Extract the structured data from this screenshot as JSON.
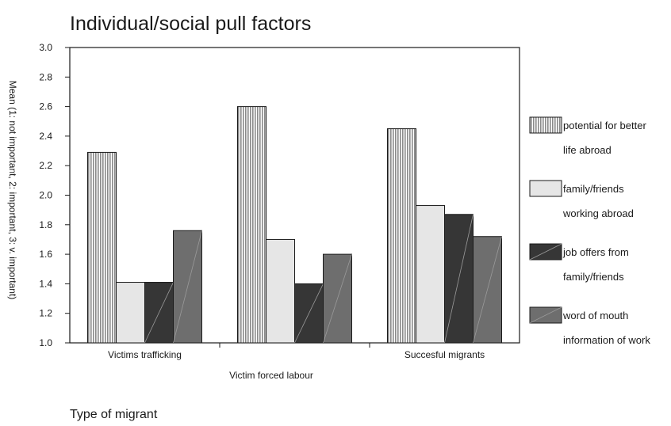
{
  "chart_data": {
    "type": "bar",
    "title": "Individual/social pull factors",
    "ylabel": "Mean (1: not important, 2: important, 3: v. important)",
    "xlabel": "Victim forced labour",
    "footer": "Type of migrant",
    "categories": [
      "Victims trafficking",
      "Victim forced labour",
      "Succesful migrants"
    ],
    "ylim": [
      1.0,
      3.0
    ],
    "yticks": [
      "1.0",
      "1.2",
      "1.4",
      "1.6",
      "1.8",
      "2.0",
      "2.2",
      "2.4",
      "2.6",
      "2.8",
      "3.0"
    ],
    "legend_position": "right",
    "series": [
      {
        "name": "potential for better life abroad",
        "legend_lines": [
          "potential for better",
          "life abroad"
        ],
        "pattern": "vertical-stripes",
        "color": "#b0b0b0",
        "values": [
          2.29,
          2.6,
          2.45
        ]
      },
      {
        "name": "family/friends working abroad",
        "legend_lines": [
          "family/friends",
          "working abroad"
        ],
        "pattern": "solid",
        "color": "#e6e6e6",
        "values": [
          1.41,
          1.7,
          1.93
        ]
      },
      {
        "name": "job offers from family/friends",
        "legend_lines": [
          "job offers from",
          "family/friends"
        ],
        "pattern": "diagonal",
        "color": "#363636",
        "values": [
          1.41,
          1.4,
          1.87
        ]
      },
      {
        "name": "word of mouth information of work",
        "legend_lines": [
          "word of mouth",
          "information of work"
        ],
        "pattern": "diagonal",
        "color": "#6e6e6e",
        "values": [
          1.76,
          1.6,
          1.72
        ]
      }
    ]
  }
}
